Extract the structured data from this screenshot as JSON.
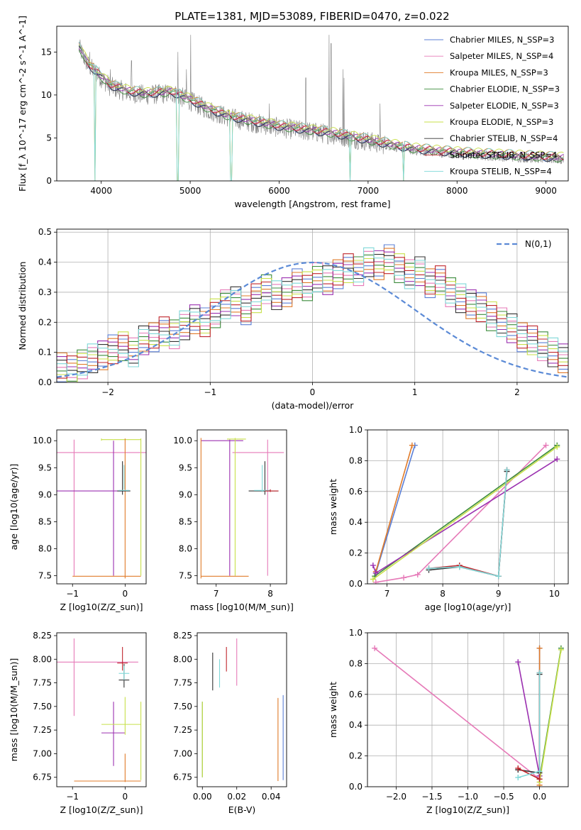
{
  "figure": {
    "title": "PLATE=1381, MJD=53089, FIBERID=0470, z=0.022"
  },
  "colors": {
    "Chabrier MILES": "#5b7fd6",
    "Salpeter MILES": "#e67ab8",
    "Kroupa MILES": "#e07b2a",
    "Chabrier ELODIE": "#3c8c3c",
    "Salpeter ELODIE": "#9b30b0",
    "Kroupa ELODIE": "#c8e04a",
    "Chabrier STELIB": "#333333",
    "Salpeter STELIB": "#c0262d",
    "Kroupa STELIB": "#7fd8d8",
    "data": "#808080",
    "normal": "#5b8ad6"
  },
  "chart_data": [
    {
      "id": "spectrum",
      "type": "line",
      "title": "PLATE=1381, MJD=53089, FIBERID=0470, z=0.022",
      "xlabel": "wavelength [Angstrom, rest frame]",
      "ylabel": "Flux [f_λ 10^-17 erg cm^-2 s^-1 A^-1]",
      "xlim": [
        3500,
        9250
      ],
      "ylim": [
        0,
        18
      ],
      "xticks": [
        4000,
        5000,
        6000,
        7000,
        8000,
        9000
      ],
      "yticks": [
        0,
        5,
        10,
        15
      ],
      "legend_position": "top-right",
      "legend": [
        "Chabrier MILES, N_SSP=3",
        "Salpeter MILES, N_SSP=4",
        "Kroupa MILES, N_SSP=3",
        "Chabrier ELODIE, N_SSP=3",
        "Salpeter ELODIE, N_SSP=3",
        "Kroupa ELODIE, N_SSP=3",
        "Chabrier STELIB, N_SSP=4",
        "Salpeter STELIB, N_SSP=4",
        "Kroupa STELIB, N_SSP=4"
      ],
      "continuum": [
        [
          3750,
          15.5
        ],
        [
          3850,
          13.5
        ],
        [
          4000,
          12.0
        ],
        [
          4100,
          11.0
        ],
        [
          4300,
          10.3
        ],
        [
          4500,
          10.0
        ],
        [
          4800,
          10.2
        ],
        [
          5000,
          9.3
        ],
        [
          5200,
          8.3
        ],
        [
          5400,
          7.5
        ],
        [
          5600,
          7.0
        ],
        [
          5800,
          6.6
        ],
        [
          6000,
          6.2
        ],
        [
          6300,
          5.8
        ],
        [
          6600,
          5.4
        ],
        [
          6900,
          4.8
        ],
        [
          7200,
          4.2
        ],
        [
          7500,
          3.6
        ],
        [
          7800,
          3.3
        ],
        [
          8200,
          3.0
        ],
        [
          8600,
          2.8
        ],
        [
          9000,
          2.6
        ],
        [
          9200,
          2.5
        ]
      ],
      "emission_lines": [
        [
          3727,
          18
        ],
        [
          3869,
          15
        ],
        [
          4102,
          13
        ],
        [
          4340,
          14
        ],
        [
          4861,
          15
        ],
        [
          4959,
          13
        ],
        [
          5007,
          17
        ],
        [
          5890,
          9
        ],
        [
          6300,
          12
        ],
        [
          6563,
          17
        ],
        [
          6584,
          16
        ],
        [
          6717,
          13
        ],
        [
          6731,
          12
        ],
        [
          7135,
          9
        ]
      ],
      "absorption_dips": [
        [
          3933,
          0
        ],
        [
          4861,
          0
        ],
        [
          5460,
          0
        ],
        [
          6800,
          0
        ],
        [
          7400,
          0
        ]
      ]
    },
    {
      "id": "residuals",
      "type": "histogram",
      "xlabel": "(data-model)/error",
      "ylabel": "Normed distribution",
      "xlim": [
        -2.5,
        2.5
      ],
      "ylim": [
        0,
        0.51
      ],
      "xticks": [
        -2,
        -1,
        0,
        1,
        2
      ],
      "yticks": [
        0.0,
        0.1,
        0.2,
        0.3,
        0.4,
        0.5
      ],
      "legend_position": "top-right",
      "legend": [
        "N(0,1)"
      ],
      "bin_edges_start": -2.5,
      "bin_width": 0.1,
      "series": [
        {
          "name": "Chabrier MILES",
          "values": [
            0.05,
            0.04,
            0.06,
            0.08,
            0.09,
            0.11,
            0.12,
            0.1,
            0.14,
            0.15,
            0.17,
            0.16,
            0.19,
            0.21,
            0.2,
            0.23,
            0.26,
            0.27,
            0.24,
            0.28,
            0.31,
            0.29,
            0.3,
            0.33,
            0.32,
            0.35,
            0.34,
            0.36,
            0.38,
            0.37,
            0.4,
            0.39,
            0.41,
            0.38,
            0.36,
            0.37,
            0.33,
            0.34,
            0.3,
            0.28,
            0.26,
            0.25,
            0.22,
            0.2,
            0.18,
            0.15,
            0.14,
            0.12,
            0.1,
            0.08
          ]
        }
      ]
    },
    {
      "id": "age_vs_Z",
      "type": "scatter",
      "xlabel": "Z [log10(Z/Z_sun)]",
      "ylabel": "age [log10(age/yr)]",
      "xlim": [
        -1.3,
        0.4
      ],
      "ylim": [
        7.35,
        10.2
      ],
      "xticks": [
        -1,
        0
      ],
      "yticks": [
        7.5,
        8.0,
        8.5,
        9.0,
        9.5,
        10.0
      ]
    },
    {
      "id": "age_vs_mass",
      "type": "scatter",
      "xlabel": "mass [log10(M/M_sun)]",
      "xlim": [
        6.65,
        8.3
      ],
      "ylim": [
        7.35,
        10.2
      ],
      "xticks": [
        7,
        8
      ],
      "yticks": [
        7.5,
        8.0,
        8.5,
        9.0,
        9.5,
        10.0
      ]
    },
    {
      "id": "weight_vs_age",
      "type": "line",
      "xlabel": "age [log10(age/yr)]",
      "ylabel": "mass weight",
      "xlim": [
        6.65,
        10.25
      ],
      "ylim": [
        0,
        1.0
      ],
      "xticks": [
        7,
        8,
        9,
        10
      ],
      "yticks": [
        0.0,
        0.2,
        0.4,
        0.6,
        0.8,
        1.0
      ],
      "series": [
        {
          "name": "Chabrier MILES",
          "x": [
            6.8,
            7.5
          ],
          "y": [
            0.07,
            0.9
          ]
        },
        {
          "name": "Salpeter MILES",
          "x": [
            6.8,
            7.3,
            7.55,
            9.85
          ],
          "y": [
            0.01,
            0.04,
            0.06,
            0.9
          ]
        },
        {
          "name": "Kroupa MILES",
          "x": [
            6.8,
            7.45
          ],
          "y": [
            0.08,
            0.9
          ]
        },
        {
          "name": "Chabrier ELODIE",
          "x": [
            6.78,
            10.05
          ],
          "y": [
            0.05,
            0.9
          ]
        },
        {
          "name": "Salpeter ELODIE",
          "x": [
            6.75,
            6.8,
            10.05
          ],
          "y": [
            0.12,
            0.07,
            0.81
          ]
        },
        {
          "name": "Kroupa ELODIE",
          "x": [
            6.75,
            10.05
          ],
          "y": [
            0.03,
            0.89
          ]
        },
        {
          "name": "Chabrier STELIB",
          "x": [
            7.75,
            8.3,
            9.0,
            9.15
          ],
          "y": [
            0.09,
            0.11,
            0.05,
            0.73
          ]
        },
        {
          "name": "Salpeter STELIB",
          "x": [
            7.75,
            8.3,
            9.0,
            9.15
          ],
          "y": [
            0.1,
            0.12,
            0.05,
            0.74
          ]
        },
        {
          "name": "Kroupa STELIB",
          "x": [
            7.75,
            8.3,
            9.0,
            9.15
          ],
          "y": [
            0.1,
            0.11,
            0.05,
            0.74
          ]
        }
      ]
    },
    {
      "id": "mass_vs_Z",
      "type": "scatter",
      "xlabel": "Z [log10(Z/Z_sun)]",
      "ylabel": "mass [log10(M/M_sun)]",
      "xlim": [
        -1.3,
        0.4
      ],
      "ylim": [
        6.65,
        8.28
      ],
      "xticks": [
        -1,
        0
      ],
      "yticks": [
        6.75,
        7.0,
        7.25,
        7.5,
        7.75,
        8.0,
        8.25
      ]
    },
    {
      "id": "mass_vs_EBV",
      "type": "scatter",
      "xlabel": "E(B-V)",
      "xlim": [
        -0.003,
        0.049
      ],
      "ylim": [
        6.65,
        8.28
      ],
      "xticks": [
        0.0,
        0.02,
        0.04
      ],
      "yticks": [
        6.75,
        7.0,
        7.25,
        7.5,
        7.75,
        8.0,
        8.25
      ],
      "series": [
        {
          "name": "Chabrier MILES",
          "x": [
            0.047
          ],
          "y": [
            7.17
          ],
          "yerr": [
            0.45
          ]
        },
        {
          "name": "Salpeter MILES",
          "x": [
            0.02
          ],
          "y": [
            7.97
          ],
          "yerr": [
            0.25
          ]
        },
        {
          "name": "Kroupa MILES",
          "x": [
            0.044
          ],
          "y": [
            7.15
          ],
          "yerr": [
            0.44
          ]
        },
        {
          "name": "Chabrier ELODIE",
          "x": [
            0.0
          ],
          "y": [
            7.15
          ],
          "yerr": [
            0.4
          ]
        },
        {
          "name": "Kroupa ELODIE",
          "x": [
            0.0
          ],
          "y": [
            7.15
          ],
          "yerr": [
            0.4
          ]
        },
        {
          "name": "Chabrier STELIB",
          "x": [
            0.006
          ],
          "y": [
            7.87
          ],
          "yerr": [
            0.2
          ]
        },
        {
          "name": "Salpeter STELIB",
          "x": [
            0.014
          ],
          "y": [
            8.0
          ],
          "yerr": [
            0.13
          ]
        },
        {
          "name": "Kroupa STELIB",
          "x": [
            0.01
          ],
          "y": [
            7.85
          ],
          "yerr": [
            0.15
          ]
        }
      ]
    },
    {
      "id": "weight_vs_Z",
      "type": "line",
      "xlabel": "Z [log10(Z/Z_sun)]",
      "ylabel": "mass weight",
      "xlim": [
        -2.4,
        0.4
      ],
      "ylim": [
        0,
        1.0
      ],
      "xticks": [
        -2.0,
        -1.5,
        -1.0,
        -0.5,
        0.0
      ],
      "yticks": [
        0.0,
        0.2,
        0.4,
        0.6,
        0.8,
        1.0
      ],
      "series": [
        {
          "name": "Chabrier MILES",
          "x": [
            0.0,
            0.0
          ],
          "y": [
            0.07,
            0.9
          ]
        },
        {
          "name": "Salpeter MILES",
          "x": [
            -2.3,
            0.0,
            0.0
          ],
          "y": [
            0.9,
            0.05,
            0.01
          ]
        },
        {
          "name": "Kroupa MILES",
          "x": [
            0.0,
            0.0
          ],
          "y": [
            0.01,
            0.9
          ]
        },
        {
          "name": "Chabrier ELODIE",
          "x": [
            0.0,
            0.3
          ],
          "y": [
            0.05,
            0.9
          ]
        },
        {
          "name": "Salpeter ELODIE",
          "x": [
            -0.3,
            0.0
          ],
          "y": [
            0.81,
            0.07
          ]
        },
        {
          "name": "Kroupa ELODIE",
          "x": [
            0.0,
            0.3
          ],
          "y": [
            0.03,
            0.89
          ]
        },
        {
          "name": "Chabrier STELIB",
          "x": [
            -0.3,
            0.0,
            0.0
          ],
          "y": [
            0.11,
            0.09,
            0.73
          ]
        },
        {
          "name": "Salpeter STELIB",
          "x": [
            -0.3,
            0.0,
            0.0
          ],
          "y": [
            0.12,
            0.05,
            0.74
          ]
        },
        {
          "name": "Kroupa STELIB",
          "x": [
            -0.3,
            0.0,
            0.0
          ],
          "y": [
            0.06,
            0.1,
            0.74
          ]
        }
      ]
    }
  ]
}
